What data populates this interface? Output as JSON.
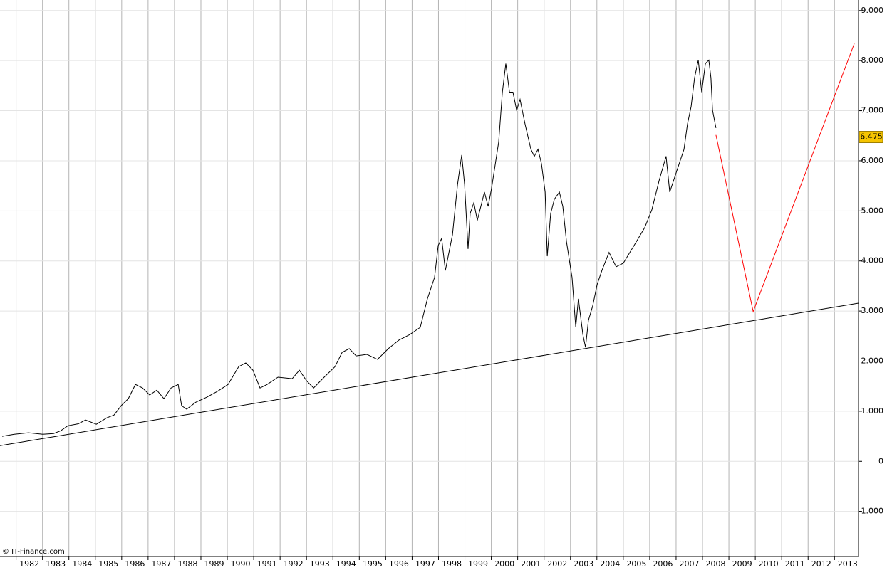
{
  "chart_data": {
    "type": "line",
    "watermark": "© IT-Finance.com",
    "xlim": [
      1981.39,
      2013.91
    ],
    "xticks": [
      1982,
      1983,
      1984,
      1985,
      1986,
      1987,
      1988,
      1989,
      1990,
      1991,
      1992,
      1993,
      1994,
      1995,
      1996,
      1997,
      1998,
      1999,
      2000,
      2001,
      2002,
      2003,
      2004,
      2005,
      2006,
      2007,
      2008,
      2009,
      2010,
      2011,
      2012,
      2013
    ],
    "ylim": [
      -1900,
      9210
    ],
    "yticks": [
      {
        "value": -1000,
        "label": "-1.000"
      },
      0,
      {
        "value": 1000,
        "label": "1.000"
      },
      {
        "value": 2000,
        "label": "2.000"
      },
      {
        "value": 3000,
        "label": "3.000"
      },
      {
        "value": 4000,
        "label": "4.000"
      },
      {
        "value": 5000,
        "label": "5.000"
      },
      {
        "value": 6000,
        "label": "6.000"
      },
      {
        "value": 7000,
        "label": "7.000"
      },
      {
        "value": 8000,
        "label": "8.000"
      },
      {
        "value": 9000,
        "label": "9.000"
      }
    ],
    "grid": true,
    "last_price": {
      "value": 6475,
      "label": "6.475",
      "color": "#f5c400"
    },
    "series": [
      {
        "color": "#000000",
        "x": [
          1981.47,
          1981.93,
          1982.47,
          1983.01,
          1983.42,
          1983.69,
          1983.96,
          1984.36,
          1984.63,
          1985.04,
          1985.44,
          1985.71,
          1985.98,
          1986.25,
          1986.52,
          1986.79,
          1987.06,
          1987.33,
          1987.6,
          1987.87,
          1988.14,
          1988.27,
          1988.46,
          1988.81,
          1989.22,
          1989.62,
          1990.03,
          1990.43,
          1990.7,
          1990.97,
          1991.24,
          1991.51,
          1991.92,
          1992.46,
          1992.73,
          1993.0,
          1993.27,
          1993.67,
          1994.08,
          1994.35,
          1994.62,
          1994.88,
          1995.29,
          1995.69,
          1996.1,
          1996.5,
          1996.91,
          1997.31,
          1997.58,
          1997.85,
          1997.99,
          1998.12,
          1998.26,
          1998.53,
          1998.72,
          1998.88,
          1998.99,
          1999.12,
          1999.2,
          1999.34,
          1999.47,
          1999.74,
          1999.88,
          2000.01,
          2000.28,
          2000.42,
          2000.55,
          2000.69,
          2000.82,
          2000.96,
          2001.09,
          2001.28,
          2001.5,
          2001.63,
          2001.77,
          2001.9,
          2002.04,
          2002.12,
          2002.25,
          2002.39,
          2002.58,
          2002.71,
          2002.85,
          2003.06,
          2003.2,
          2003.3,
          2003.47,
          2003.57,
          2003.68,
          2003.84,
          2004.01,
          2004.19,
          2004.46,
          2004.73,
          2005.0,
          2005.41,
          2005.81,
          2006.08,
          2006.35,
          2006.62,
          2006.76,
          2007.03,
          2007.3,
          2007.43,
          2007.57,
          2007.7,
          2007.84,
          2007.97,
          2008.11,
          2008.24,
          2008.32,
          2008.38,
          2008.51
        ],
        "values": [
          500,
          540,
          570,
          540,
          555,
          610,
          710,
          750,
          825,
          740,
          870,
          925,
          1110,
          1250,
          1535,
          1465,
          1325,
          1420,
          1250,
          1465,
          1535,
          1110,
          1040,
          1180,
          1280,
          1395,
          1535,
          1890,
          1965,
          1820,
          1465,
          1535,
          1680,
          1650,
          1820,
          1610,
          1465,
          1680,
          1890,
          2175,
          2250,
          2105,
          2135,
          2035,
          2250,
          2420,
          2530,
          2675,
          3245,
          3670,
          4310,
          4450,
          3810,
          4525,
          5520,
          6115,
          5520,
          4240,
          4950,
          5165,
          4810,
          5375,
          5090,
          5450,
          6375,
          7370,
          7940,
          7370,
          7370,
          7010,
          7225,
          6730,
          6230,
          6090,
          6230,
          5945,
          5375,
          4095,
          4950,
          5235,
          5375,
          5090,
          4380,
          3670,
          2675,
          3245,
          2530,
          2275,
          2815,
          3100,
          3530,
          3810,
          4170,
          3885,
          3955,
          4310,
          4665,
          5020,
          5590,
          6090,
          5375,
          5805,
          6230,
          6730,
          7085,
          7655,
          8010,
          7370,
          7940,
          8010,
          7655,
          7010,
          6655
        ]
      },
      {
        "color": "#000000",
        "x": [
          1981.39,
          2013.91
        ],
        "values": [
          313,
          3158
        ]
      },
      {
        "color": "#ff0000",
        "x": [
          2008.51,
          2009.92,
          2013.75
        ],
        "values": [
          6515,
          2990,
          8340
        ]
      }
    ]
  }
}
